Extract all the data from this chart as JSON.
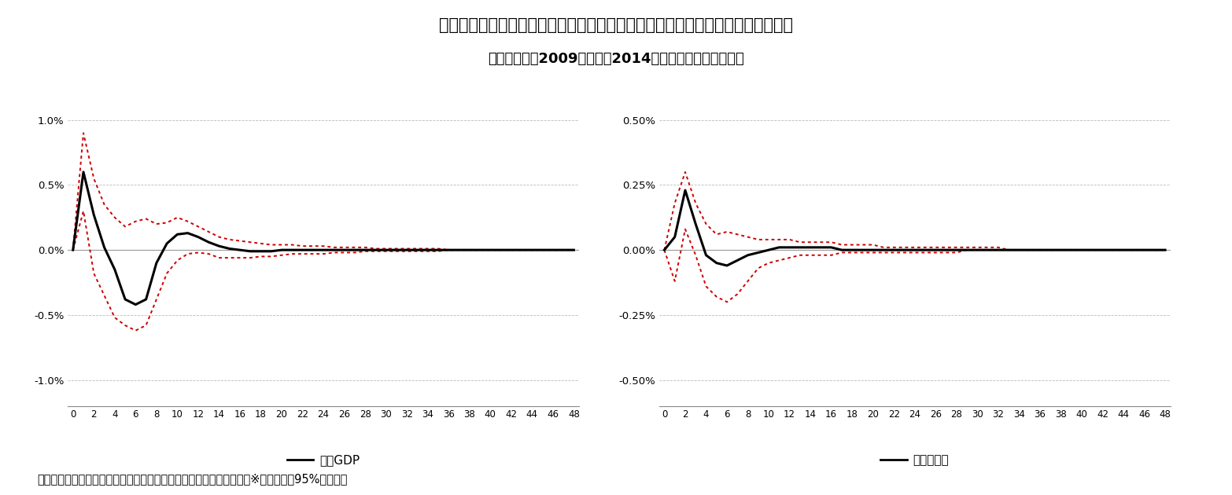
{
  "title1": "図表６：クレジットカード決済額にショックを与えたときのインパルス応答関数",
  "title2": "（分析期間：2009年１月〜2014年３月の四半期データ）",
  "footnote": "（資料：内閣府、総務省、経済産業省、日本銀行のデータから作成）※赤い点線は95%信頼区間",
  "legend1": "実質GDP",
  "legend2": "物価上昇率",
  "x_ticks": [
    0,
    2,
    4,
    6,
    8,
    10,
    12,
    14,
    16,
    18,
    20,
    22,
    24,
    26,
    28,
    30,
    32,
    34,
    36,
    38,
    40,
    42,
    44,
    46,
    48
  ],
  "left_ytick_labels": [
    "-1.0%",
    "-0.5%",
    "0.0%",
    "0.5%",
    "1.0%"
  ],
  "left_ytick_vals": [
    -0.01,
    -0.005,
    0.0,
    0.005,
    0.01
  ],
  "left_ylim": [
    -0.012,
    0.012
  ],
  "right_ytick_labels": [
    "-0.50%",
    "-0.25%",
    "0.00%",
    "0.25%",
    "0.50%"
  ],
  "right_ytick_vals": [
    -0.005,
    -0.0025,
    0.0,
    0.0025,
    0.005
  ],
  "right_ylim": [
    -0.006,
    0.006
  ],
  "left_irf": [
    0.0,
    0.006,
    0.0027,
    0.0002,
    -0.0015,
    -0.0038,
    -0.0042,
    -0.0038,
    -0.001,
    0.0005,
    0.0012,
    0.0013,
    0.001,
    0.0006,
    0.0003,
    0.0001,
    0.0,
    -0.0001,
    -0.0001,
    -0.0001,
    0.0,
    0.0,
    0.0,
    0.0,
    0.0,
    0.0,
    0.0,
    0.0,
    0.0,
    0.0,
    0.0,
    0.0,
    0.0,
    0.0,
    0.0,
    0.0,
    0.0,
    0.0,
    0.0,
    0.0,
    0.0,
    0.0,
    0.0,
    0.0,
    0.0,
    0.0,
    0.0,
    0.0,
    0.0
  ],
  "left_upper": [
    0.0,
    0.009,
    0.0055,
    0.0035,
    0.0025,
    0.0018,
    0.0022,
    0.0024,
    0.002,
    0.0021,
    0.0025,
    0.0022,
    0.0018,
    0.0014,
    0.001,
    0.0008,
    0.0007,
    0.0006,
    0.0005,
    0.0004,
    0.0004,
    0.0004,
    0.0003,
    0.0003,
    0.0003,
    0.0002,
    0.0002,
    0.0002,
    0.0002,
    0.0001,
    0.0001,
    0.0001,
    0.0001,
    0.0001,
    0.0001,
    0.0001,
    0.0,
    0.0,
    0.0,
    0.0,
    0.0,
    0.0,
    0.0,
    0.0,
    0.0,
    0.0,
    0.0,
    0.0,
    0.0
  ],
  "left_lower": [
    0.0,
    0.003,
    -0.0018,
    -0.0035,
    -0.0052,
    -0.0058,
    -0.0062,
    -0.0058,
    -0.0038,
    -0.0018,
    -0.0008,
    -0.0003,
    -0.0002,
    -0.0003,
    -0.0006,
    -0.0006,
    -0.0006,
    -0.0006,
    -0.0005,
    -0.0005,
    -0.0004,
    -0.0003,
    -0.0003,
    -0.0003,
    -0.0003,
    -0.0002,
    -0.0002,
    -0.0002,
    -0.0001,
    -0.0001,
    -0.0001,
    -0.0001,
    -0.0001,
    -0.0001,
    -0.0001,
    -0.0001,
    0.0,
    0.0,
    0.0,
    0.0,
    0.0,
    0.0,
    0.0,
    0.0,
    0.0,
    0.0,
    0.0,
    0.0,
    0.0
  ],
  "right_irf": [
    0.0,
    0.0005,
    0.0023,
    0.001,
    -0.0002,
    -0.0005,
    -0.0006,
    -0.0004,
    -0.0002,
    -0.0001,
    0.0,
    0.0001,
    0.0001,
    0.0001,
    0.0001,
    0.0001,
    0.0001,
    0.0,
    0.0,
    0.0,
    0.0,
    0.0,
    0.0,
    0.0,
    0.0,
    0.0,
    0.0,
    0.0,
    0.0,
    0.0,
    0.0,
    0.0,
    0.0,
    0.0,
    0.0,
    0.0,
    0.0,
    0.0,
    0.0,
    0.0,
    0.0,
    0.0,
    0.0,
    0.0,
    0.0,
    0.0,
    0.0,
    0.0,
    0.0
  ],
  "right_upper": [
    0.0,
    0.0018,
    0.003,
    0.0018,
    0.001,
    0.0006,
    0.0007,
    0.0006,
    0.0005,
    0.0004,
    0.0004,
    0.0004,
    0.0004,
    0.0003,
    0.0003,
    0.0003,
    0.0003,
    0.0002,
    0.0002,
    0.0002,
    0.0002,
    0.0001,
    0.0001,
    0.0001,
    0.0001,
    0.0001,
    0.0001,
    0.0001,
    0.0001,
    0.0001,
    0.0001,
    0.0001,
    0.0001,
    0.0,
    0.0,
    0.0,
    0.0,
    0.0,
    0.0,
    0.0,
    0.0,
    0.0,
    0.0,
    0.0,
    0.0,
    0.0,
    0.0,
    0.0,
    0.0
  ],
  "right_lower": [
    0.0,
    -0.0012,
    0.0008,
    -0.0002,
    -0.0014,
    -0.0018,
    -0.002,
    -0.0017,
    -0.0012,
    -0.0007,
    -0.0005,
    -0.0004,
    -0.0003,
    -0.0002,
    -0.0002,
    -0.0002,
    -0.0002,
    -0.0001,
    -0.0001,
    -0.0001,
    -0.0001,
    -0.0001,
    -0.0001,
    -0.0001,
    -0.0001,
    -0.0001,
    -0.0001,
    -0.0001,
    -0.0001,
    0.0,
    0.0,
    0.0,
    0.0,
    0.0,
    0.0,
    0.0,
    0.0,
    0.0,
    0.0,
    0.0,
    0.0,
    0.0,
    0.0,
    0.0,
    0.0,
    0.0,
    0.0,
    0.0,
    0.0
  ],
  "line_color": "#000000",
  "band_color": "#cc0000",
  "grid_color": "#bbbbbb",
  "bg_color": "#ffffff"
}
